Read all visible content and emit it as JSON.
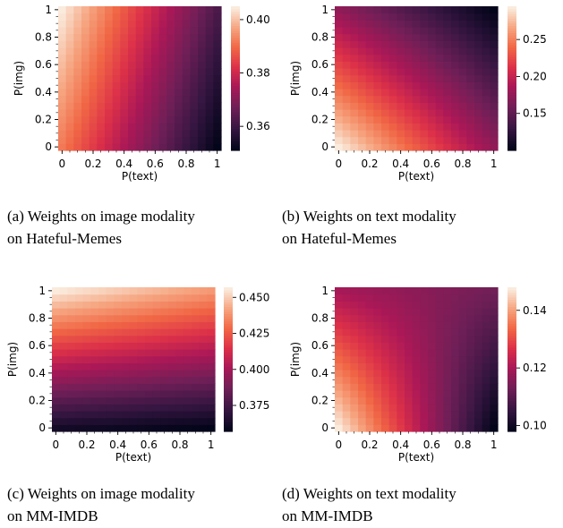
{
  "chart_data": [
    {
      "type": "heatmap",
      "xlabel": "P(text)",
      "ylabel": "P(img)",
      "x_ticks": [
        "0",
        "0.2",
        "0.4",
        "0.6",
        "0.8",
        "1"
      ],
      "y_ticks": [
        "0",
        "0.2",
        "0.4",
        "0.6",
        "0.8",
        "1"
      ],
      "colorbar": {
        "range": [
          0.351,
          0.405
        ],
        "ticks": [
          "0.36",
          "0.38",
          "0.40"
        ],
        "tick_values": [
          0.36,
          0.38,
          0.4
        ]
      },
      "surface": {
        "v00": 0.392,
        "v10": 0.351,
        "v01": 0.405,
        "v11": 0.362
      },
      "caption": [
        "(a) Weights on image modality",
        "on Hateful-Memes"
      ]
    },
    {
      "type": "heatmap",
      "xlabel": "P(text)",
      "ylabel": "P(img)",
      "x_ticks": [
        "0",
        "0.2",
        "0.4",
        "0.6",
        "0.8",
        "1"
      ],
      "y_ticks": [
        "0",
        "0.2",
        "0.4",
        "0.6",
        "0.8",
        "1"
      ],
      "colorbar": {
        "range": [
          0.1,
          0.295
        ],
        "ticks": [
          "0.15",
          "0.20",
          "0.25"
        ],
        "tick_values": [
          0.15,
          0.2,
          0.25
        ]
      },
      "surface": {
        "v00": 0.295,
        "v10": 0.175,
        "v01": 0.175,
        "v11": 0.1
      },
      "caption": [
        "(b) Weights on text modality",
        "on Hateful-Memes"
      ]
    },
    {
      "type": "heatmap",
      "xlabel": "P(text)",
      "ylabel": "P(img)",
      "x_ticks": [
        "0",
        "0.2",
        "0.4",
        "0.6",
        "0.8",
        "1"
      ],
      "y_ticks": [
        "0",
        "0.2",
        "0.4",
        "0.6",
        "0.8",
        "1"
      ],
      "colorbar": {
        "range": [
          0.357,
          0.457
        ],
        "ticks": [
          "0.375",
          "0.400",
          "0.425",
          "0.450"
        ],
        "tick_values": [
          0.375,
          0.4,
          0.425,
          0.45
        ]
      },
      "surface": {
        "v00": 0.362,
        "v10": 0.357,
        "v01": 0.457,
        "v11": 0.44
      },
      "caption": [
        "(c) Weights on image modality",
        "on MM-IMDB"
      ]
    },
    {
      "type": "heatmap",
      "xlabel": "P(text)",
      "ylabel": "P(img)",
      "x_ticks": [
        "0",
        "0.2",
        "0.4",
        "0.6",
        "0.8",
        "1"
      ],
      "y_ticks": [
        "0",
        "0.2",
        "0.4",
        "0.6",
        "0.8",
        "1"
      ],
      "colorbar": {
        "range": [
          0.098,
          0.148
        ],
        "ticks": [
          "0.10",
          "0.12",
          "0.14"
        ],
        "tick_values": [
          0.1,
          0.12,
          0.14
        ]
      },
      "surface": {
        "v00": 0.148,
        "v10": 0.098,
        "v01": 0.12,
        "v11": 0.113
      },
      "caption": [
        "(d) Weights on text modality",
        "on MM-IMDB"
      ]
    }
  ]
}
